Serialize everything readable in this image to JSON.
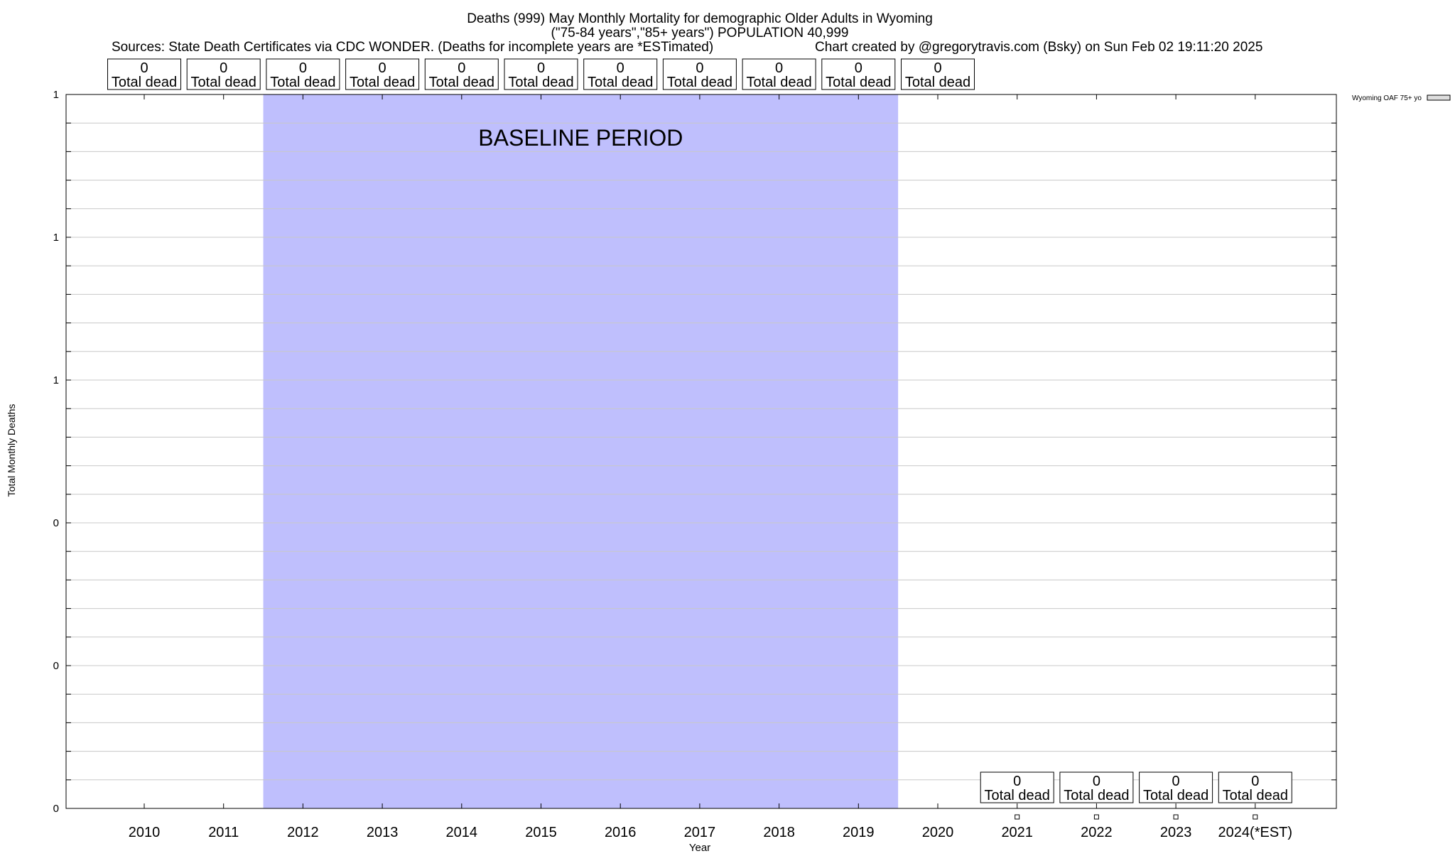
{
  "chart_data": {
    "type": "scatter",
    "title_line1": "Deaths (999) May Monthly Mortality for demographic Older Adults in Wyoming",
    "title_line2": "(\"75-84 years\",\"85+ years\") POPULATION 40,999",
    "sources": "Sources: State Death Certificates via CDC WONDER. (Deaths for incomplete years are *ESTimated)",
    "credit": "Chart created by @gregorytravis.com (Bsky) on Sun Feb 02 19:11:20 2025",
    "xlabel": "Year",
    "ylabel": "Total Monthly Deaths",
    "categories": [
      "2010",
      "2011",
      "2012",
      "2013",
      "2014",
      "2015",
      "2016",
      "2017",
      "2018",
      "2019",
      "2020",
      "2021",
      "2022",
      "2023",
      "2024(*EST)"
    ],
    "y_tick_labels": [
      "0",
      "0",
      "0",
      "1",
      "1",
      "1"
    ],
    "ylim": [
      0,
      1
    ],
    "grid": true,
    "baseline": {
      "label": "BASELINE PERIOD",
      "start_year": "2012",
      "end_year": "2019",
      "color": "#bfbffd"
    },
    "top_totals": [
      {
        "year": "2010",
        "value": "0",
        "label": "Total dead"
      },
      {
        "year": "2011",
        "value": "0",
        "label": "Total dead"
      },
      {
        "year": "2012",
        "value": "0",
        "label": "Total dead"
      },
      {
        "year": "2013",
        "value": "0",
        "label": "Total dead"
      },
      {
        "year": "2014",
        "value": "0",
        "label": "Total dead"
      },
      {
        "year": "2015",
        "value": "0",
        "label": "Total dead"
      },
      {
        "year": "2016",
        "value": "0",
        "label": "Total dead"
      },
      {
        "year": "2017",
        "value": "0",
        "label": "Total dead"
      },
      {
        "year": "2018",
        "value": "0",
        "label": "Total dead"
      },
      {
        "year": "2019",
        "value": "0",
        "label": "Total dead"
      },
      {
        "year": "2020",
        "value": "0",
        "label": "Total dead"
      }
    ],
    "bottom_totals": [
      {
        "year": "2021",
        "value": "0",
        "label": "Total dead"
      },
      {
        "year": "2022",
        "value": "0",
        "label": "Total dead"
      },
      {
        "year": "2023",
        "value": "0",
        "label": "Total dead"
      },
      {
        "year": "2024(*EST)",
        "value": "0",
        "label": "Total dead"
      }
    ],
    "series": [
      {
        "name": "Wyoming OAF 75+ yo",
        "x": [
          "2021",
          "2022",
          "2023",
          "2024(*EST)"
        ],
        "values": [
          0,
          0,
          0,
          0
        ]
      }
    ],
    "legend_placement": "top-right"
  }
}
